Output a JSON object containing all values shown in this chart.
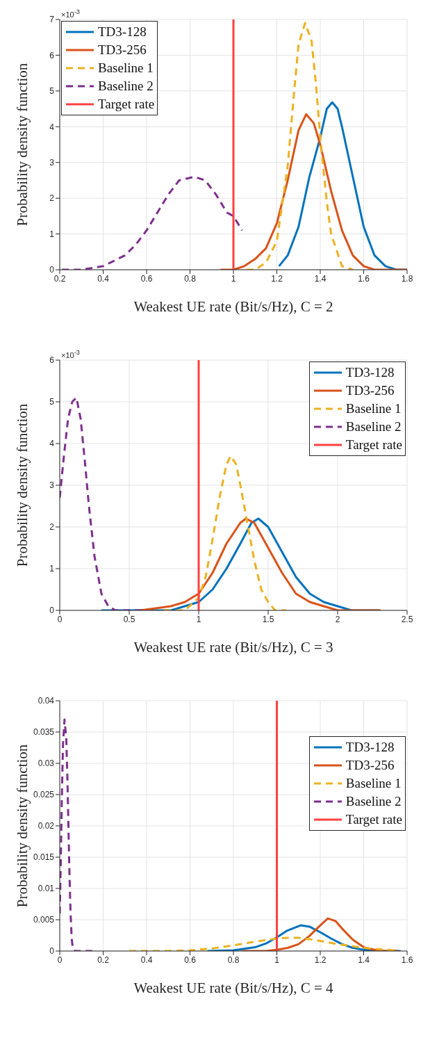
{
  "chart_data": [
    {
      "type": "line",
      "xlabel": "Weakest UE rate (Bit/s/Hz), C = 2",
      "ylabel": "Probability density function",
      "annotations": [
        "×10$^{-3}$"
      ],
      "xlim": [
        0.2,
        1.8
      ],
      "xticks": [
        0.2,
        0.4,
        0.6,
        0.8,
        1,
        1.2,
        1.4,
        1.6,
        1.8
      ],
      "ylim": [
        0,
        7
      ],
      "yticks": [
        0,
        1,
        2,
        3,
        4,
        5,
        6,
        7
      ],
      "grid": true,
      "legend": "top left",
      "marker": "none",
      "series": [
        {
          "name": "TD3-128",
          "color": "#0072bd",
          "line_style": "solid",
          "x": [
            1.21,
            1.25,
            1.3,
            1.35,
            1.4,
            1.43,
            1.455,
            1.48,
            1.5,
            1.55,
            1.6,
            1.65,
            1.7,
            1.75,
            1.8
          ],
          "values": [
            0.1,
            0.4,
            1.2,
            2.6,
            3.7,
            4.5,
            4.68,
            4.5,
            4.0,
            2.6,
            1.2,
            0.4,
            0.1,
            0,
            0
          ]
        },
        {
          "name": "TD3-256",
          "color": "#d95319",
          "line_style": "solid",
          "x": [
            0.94,
            1.0,
            1.05,
            1.1,
            1.15,
            1.2,
            1.25,
            1.3,
            1.335,
            1.37,
            1.4,
            1.45,
            1.5,
            1.55,
            1.6,
            1.65,
            1.8
          ],
          "values": [
            0,
            0,
            0.1,
            0.3,
            0.6,
            1.3,
            2.5,
            3.9,
            4.35,
            4.1,
            3.5,
            2.2,
            1.1,
            0.4,
            0.1,
            0,
            0
          ]
        },
        {
          "name": "Baseline 1",
          "color": "#edb120",
          "line_style": "dashed",
          "x": [
            1.06,
            1.1,
            1.15,
            1.2,
            1.25,
            1.28,
            1.3,
            1.33,
            1.36,
            1.38,
            1.4,
            1.43,
            1.45,
            1.5,
            1.55
          ],
          "values": [
            0,
            0,
            0.2,
            0.8,
            2.9,
            5.0,
            6.3,
            6.9,
            6.4,
            5.2,
            3.7,
            1.9,
            1.0,
            0.1,
            0
          ]
        },
        {
          "name": "Baseline 2",
          "color": "#7e2f8e",
          "line_style": "dashed",
          "x": [
            0.21,
            0.3,
            0.4,
            0.5,
            0.55,
            0.6,
            0.65,
            0.7,
            0.75,
            0.82,
            0.87,
            0.92,
            0.97,
            1.0,
            1.04
          ],
          "values": [
            0,
            0,
            0.1,
            0.4,
            0.7,
            1.1,
            1.6,
            2.1,
            2.5,
            2.6,
            2.5,
            2.1,
            1.6,
            1.5,
            1.1
          ]
        },
        {
          "name": "Target rate",
          "color": "#ff4040",
          "line_style": "solid",
          "x": [
            1,
            1
          ],
          "values": [
            0,
            7
          ]
        }
      ]
    },
    {
      "type": "line",
      "xlabel": "Weakest UE rate (Bit/s/Hz), C = 3",
      "ylabel": "Probability density function",
      "annotations": [
        "×10$^{-3}$"
      ],
      "xlim": [
        0,
        2.5
      ],
      "xticks": [
        0,
        0.5,
        1,
        1.5,
        2,
        2.5
      ],
      "ylim": [
        0,
        6
      ],
      "yticks": [
        0,
        1,
        2,
        3,
        4,
        5,
        6
      ],
      "grid": true,
      "legend": "top right",
      "marker": "none",
      "series": [
        {
          "name": "TD3-128",
          "color": "#0072bd",
          "line_style": "solid",
          "x": [
            0.3,
            0.5,
            0.8,
            0.9,
            1.0,
            1.1,
            1.2,
            1.3,
            1.38,
            1.43,
            1.5,
            1.6,
            1.7,
            1.8,
            1.9,
            2.0,
            2.1,
            2.3
          ],
          "values": [
            0,
            0,
            0,
            0.1,
            0.2,
            0.5,
            1.0,
            1.6,
            2.1,
            2.2,
            2.0,
            1.4,
            0.8,
            0.4,
            0.2,
            0.1,
            0,
            0
          ]
        },
        {
          "name": "TD3-256",
          "color": "#d95319",
          "line_style": "solid",
          "x": [
            0.58,
            0.8,
            0.9,
            1.0,
            1.1,
            1.2,
            1.3,
            1.34,
            1.4,
            1.5,
            1.6,
            1.7,
            1.8,
            1.9,
            2.0,
            2.31
          ],
          "values": [
            0,
            0.1,
            0.2,
            0.4,
            0.9,
            1.6,
            2.1,
            2.2,
            2.1,
            1.5,
            0.9,
            0.4,
            0.2,
            0.1,
            0,
            0
          ]
        },
        {
          "name": "Baseline 1",
          "color": "#edb120",
          "line_style": "dashed",
          "x": [
            0.75,
            0.9,
            1.0,
            1.05,
            1.1,
            1.15,
            1.2,
            1.23,
            1.27,
            1.3,
            1.35,
            1.4,
            1.45,
            1.5,
            1.55,
            1.63
          ],
          "values": [
            0,
            0,
            0.3,
            0.8,
            1.7,
            2.7,
            3.5,
            3.7,
            3.5,
            3.0,
            2.1,
            1.2,
            0.5,
            0.2,
            0,
            0
          ]
        },
        {
          "name": "Baseline 2",
          "color": "#7e2f8e",
          "line_style": "dashed",
          "x": [
            0,
            0.03,
            0.06,
            0.09,
            0.12,
            0.15,
            0.18,
            0.21,
            0.25,
            0.3,
            0.35,
            0.4,
            0.45,
            0.62
          ],
          "values": [
            2.7,
            3.7,
            4.6,
            5.0,
            5.1,
            4.6,
            3.6,
            2.5,
            1.3,
            0.4,
            0.1,
            0,
            0,
            0
          ]
        },
        {
          "name": "Target rate",
          "color": "#ff4040",
          "line_style": "solid",
          "x": [
            1,
            1
          ],
          "values": [
            0,
            6
          ]
        }
      ]
    },
    {
      "type": "line",
      "xlabel": "Weakest UE rate (Bit/s/Hz), C = 4",
      "ylabel": "Probability density function",
      "xlim": [
        0,
        1.6
      ],
      "xticks": [
        0,
        0.2,
        0.4,
        0.6,
        0.8,
        1,
        1.2,
        1.4,
        1.6
      ],
      "ylim": [
        0,
        0.04
      ],
      "yticks": [
        0,
        0.005,
        0.01,
        0.015,
        0.02,
        0.025,
        0.03,
        0.035,
        0.04
      ],
      "grid": true,
      "legend": "right",
      "marker": "none",
      "series": [
        {
          "name": "TD3-128",
          "color": "#0072bd",
          "line_style": "solid",
          "x": [
            0.68,
            0.8,
            0.9,
            0.95,
            1.0,
            1.05,
            1.11,
            1.15,
            1.2,
            1.25,
            1.3,
            1.35,
            1.4,
            1.5,
            1.57
          ],
          "values": [
            0,
            0.0001,
            0.0006,
            0.0012,
            0.0022,
            0.0033,
            0.0041,
            0.0039,
            0.003,
            0.002,
            0.0011,
            0.0005,
            0.0002,
            0,
            0
          ]
        },
        {
          "name": "TD3-256",
          "color": "#d95319",
          "line_style": "solid",
          "x": [
            0.84,
            0.95,
            1.0,
            1.05,
            1.1,
            1.15,
            1.2,
            1.235,
            1.27,
            1.3,
            1.35,
            1.4,
            1.45,
            1.5,
            1.56
          ],
          "values": [
            0,
            0,
            0.0002,
            0.0005,
            0.0011,
            0.0024,
            0.0041,
            0.0052,
            0.0048,
            0.0036,
            0.0018,
            0.0006,
            0.0002,
            0,
            0
          ]
        },
        {
          "name": "Baseline 1",
          "color": "#edb120",
          "line_style": "dashed",
          "x": [
            0.32,
            0.5,
            0.6,
            0.7,
            0.8,
            0.9,
            1.0,
            1.05,
            1.1,
            1.15,
            1.2,
            1.3,
            1.4,
            1.5,
            1.55
          ],
          "values": [
            0,
            0,
            0.0001,
            0.0004,
            0.0009,
            0.0015,
            0.002,
            0.0021,
            0.0021,
            0.0019,
            0.0016,
            0.001,
            0.0005,
            0.0002,
            0.0001
          ]
        },
        {
          "name": "Baseline 2",
          "color": "#7e2f8e",
          "line_style": "dashed",
          "x": [
            0,
            0.005,
            0.01,
            0.015,
            0.022,
            0.03,
            0.035,
            0.04,
            0.045,
            0.05,
            0.055,
            0.06,
            0.065,
            0.07,
            0.15
          ],
          "values": [
            0.006,
            0.015,
            0.025,
            0.033,
            0.037,
            0.034,
            0.028,
            0.02,
            0.012,
            0.006,
            0.002,
            0.0005,
            0.0001,
            0,
            0
          ]
        },
        {
          "name": "Target rate",
          "color": "#ff4040",
          "line_style": "solid",
          "x": [
            1,
            1
          ],
          "values": [
            0,
            0.04
          ]
        }
      ]
    }
  ]
}
